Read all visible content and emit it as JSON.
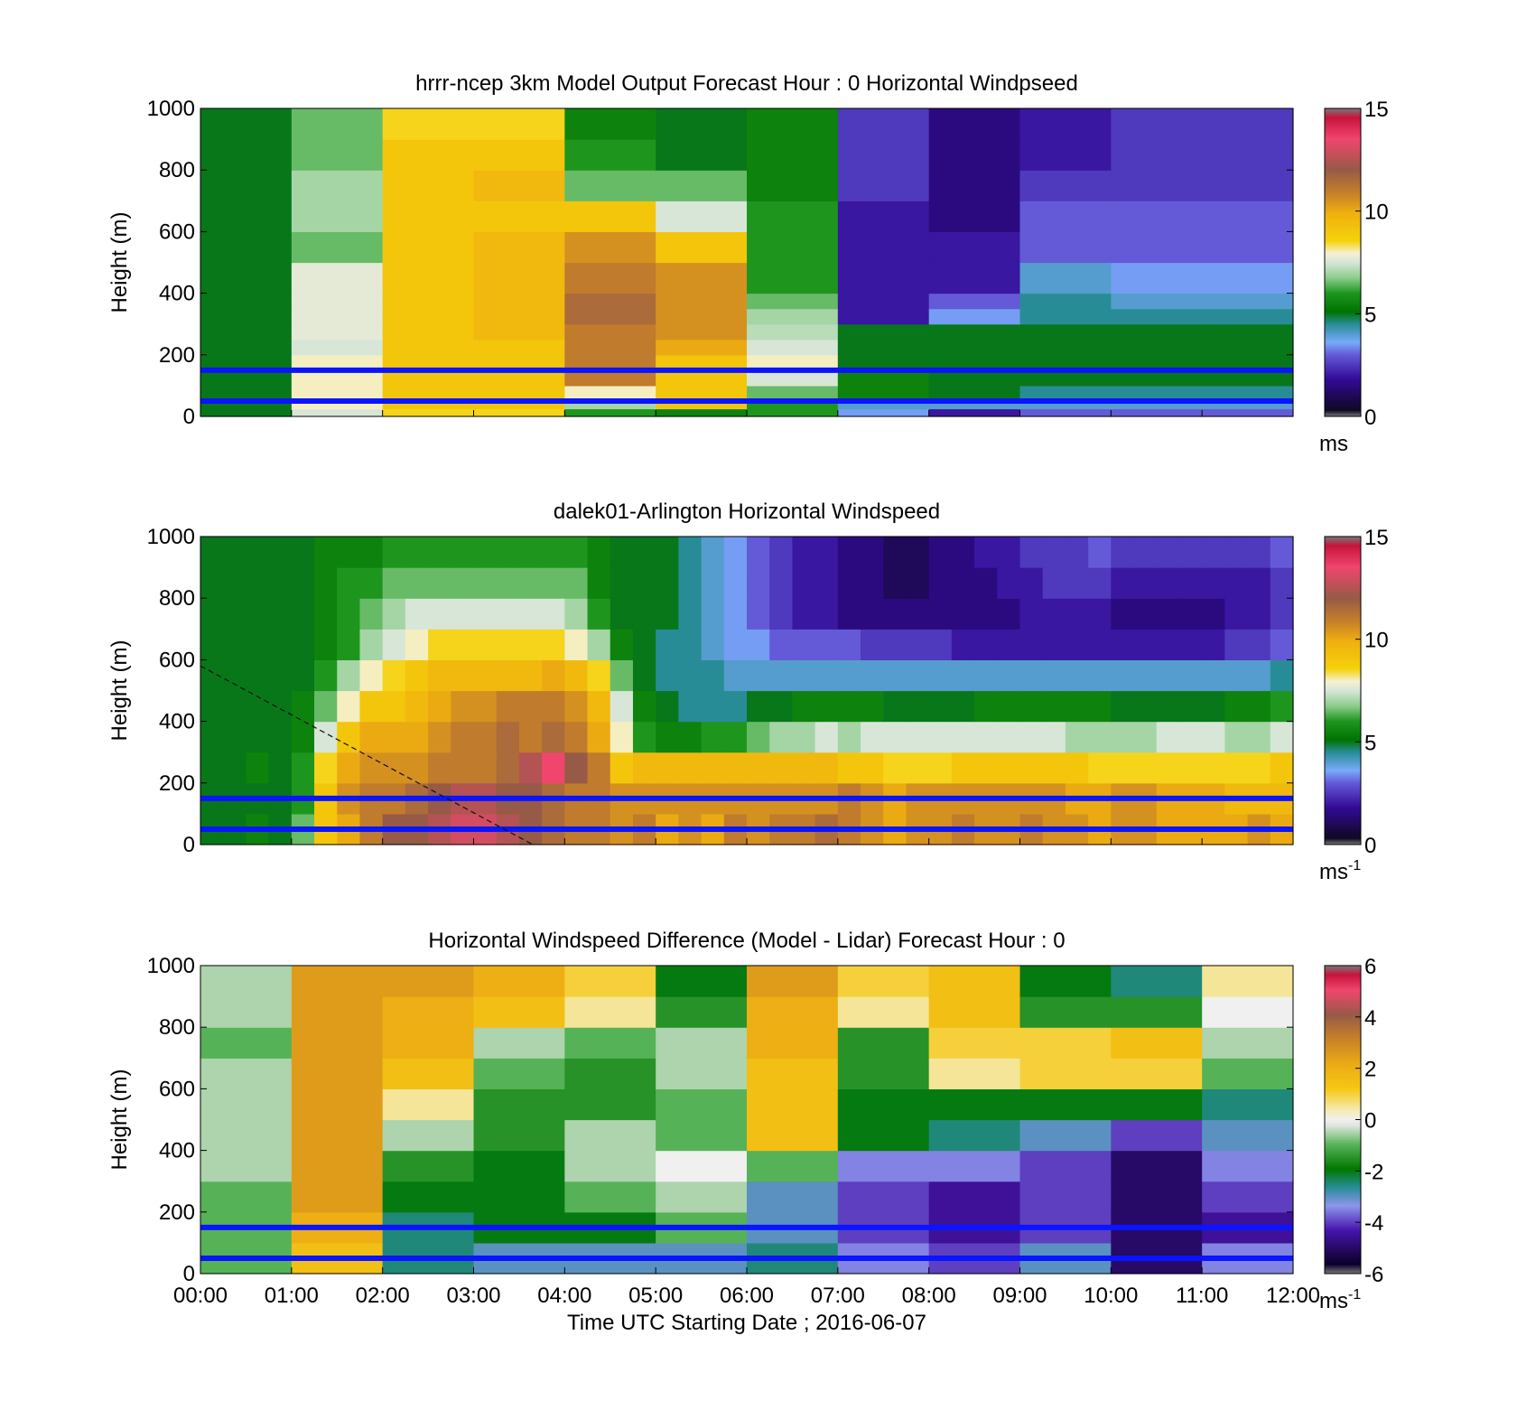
{
  "chart_data": [
    {
      "type": "heatmap",
      "title": "hrrr-ncep 3km Model Output   Forecast Hour : 0 Horizontal Windpseed",
      "ylabel": "Height (m)",
      "ylim": [
        0,
        1000
      ],
      "yticks": [
        "0",
        "200",
        "400",
        "600",
        "800",
        "1000"
      ],
      "xlim_hours": [
        0,
        12
      ],
      "colorbar": {
        "min": 0,
        "max": 15,
        "ticks": [
          "0",
          "5",
          "10",
          "15"
        ],
        "unit_label": "ms"
      },
      "reference_lines_m": [
        150,
        50
      ],
      "time_resolution_hours": 1,
      "height_levels_m": [
        0,
        25,
        50,
        100,
        150,
        200,
        250,
        300,
        350,
        400,
        500,
        600,
        700,
        800,
        900,
        1000
      ],
      "values": [
        [
          5,
          7.5,
          8.5,
          8.5,
          6,
          5.5,
          6,
          3.5,
          2,
          3,
          3,
          3
        ],
        [
          5,
          8,
          9,
          9,
          7,
          9,
          6,
          4,
          4,
          4,
          4,
          4
        ],
        [
          5,
          8,
          9,
          9,
          8,
          9,
          6.5,
          5.5,
          5,
          4.5,
          4.5,
          4.5
        ],
        [
          5,
          8,
          9,
          9,
          11,
          9,
          7.5,
          5.5,
          5,
          5,
          5,
          5
        ],
        [
          5,
          8,
          9,
          9,
          11,
          9,
          8,
          5,
          5,
          5,
          5,
          5
        ],
        [
          5,
          7.5,
          9,
          9,
          11,
          10,
          7.5,
          5,
          5,
          5,
          5,
          5
        ],
        [
          5,
          7.7,
          9,
          9.5,
          11,
          10.5,
          7.2,
          5,
          5,
          5,
          5,
          5
        ],
        [
          5,
          7.7,
          9,
          9.5,
          11.5,
          10.5,
          7,
          2,
          3.5,
          4.5,
          4.5,
          4.5
        ],
        [
          5,
          7.7,
          9,
          9.5,
          11.5,
          10.5,
          6.5,
          2,
          3,
          4.5,
          4,
          4
        ],
        [
          5,
          7.7,
          9,
          9.5,
          11,
          10.5,
          6,
          2,
          2,
          4,
          3.5,
          3.5
        ],
        [
          5,
          6.5,
          9,
          9.5,
          10.5,
          9,
          6,
          2,
          2,
          3,
          3,
          3
        ],
        [
          5,
          7,
          9,
          9,
          9,
          7.5,
          6,
          2,
          1.5,
          3,
          3,
          3
        ],
        [
          5,
          7,
          9,
          9.5,
          6.5,
          6.5,
          5.5,
          2.5,
          1.5,
          2.5,
          2.5,
          2.5
        ],
        [
          5,
          6.5,
          9,
          9,
          6,
          5,
          5.5,
          2.5,
          1.5,
          2,
          2.5,
          2.5
        ],
        [
          5,
          6.5,
          8.5,
          8.5,
          5.5,
          5,
          5.5,
          2.5,
          1.5,
          2,
          2.5,
          2.5
        ]
      ]
    },
    {
      "type": "heatmap",
      "title": "dalek01-Arlington  Horizontal Windspeed",
      "ylabel": "Height (m)",
      "ylim": [
        0,
        1000
      ],
      "yticks": [
        "0",
        "200",
        "400",
        "600",
        "800",
        "1000"
      ],
      "xlim_hours": [
        0,
        12
      ],
      "colorbar": {
        "min": 0,
        "max": 15,
        "ticks": [
          "0",
          "5",
          "10",
          "15"
        ],
        "unit_label": "ms",
        "unit_exponent": "-1"
      },
      "reference_lines_m": [
        150,
        50
      ],
      "annotation_dashed_line": {
        "from": [
          0,
          580
        ],
        "to": [
          3.65,
          0
        ]
      },
      "time_resolution_hours": 0.25,
      "height_levels_m": [
        0,
        100,
        200,
        300,
        400,
        500,
        600,
        700,
        800,
        900,
        1000
      ],
      "values": [
        [
          5,
          5,
          5.5,
          5,
          6.5,
          9,
          10,
          11,
          12,
          12,
          12.5,
          13,
          13,
          12.5,
          12,
          11.5,
          11,
          11,
          10.5,
          11,
          10,
          10.5,
          10,
          11,
          10.5,
          11,
          11,
          11.5,
          11,
          10.5,
          10,
          10.5,
          10.5,
          11,
          10.5,
          10.5,
          11,
          10.5,
          10.5,
          10,
          10.5,
          10.5,
          10,
          10,
          10,
          10,
          10.5,
          10,
          10.5
        ],
        [
          5,
          5,
          5,
          5,
          6,
          9,
          10.5,
          11,
          11,
          11.5,
          12,
          12.5,
          12.5,
          12,
          12,
          11.5,
          11,
          11,
          10.5,
          10.5,
          10.5,
          10.5,
          10.5,
          10.5,
          10.5,
          10.5,
          10.5,
          10.5,
          11,
          10.5,
          10,
          10.5,
          10.5,
          10.5,
          10.5,
          10.5,
          10.5,
          10.5,
          10,
          10,
          10.5,
          10.5,
          10,
          10,
          10,
          9.5,
          9.5,
          9.5,
          9.5
        ],
        [
          5,
          5,
          5.5,
          5,
          6,
          8.5,
          10,
          10.5,
          10.5,
          10.5,
          11,
          11,
          11,
          11.5,
          12.5,
          13.5,
          12,
          11,
          9,
          9.5,
          9.5,
          9.5,
          9.5,
          9.5,
          9.5,
          9.5,
          9.5,
          9.5,
          9,
          9,
          8.5,
          8.5,
          8.5,
          9,
          9,
          9,
          9,
          9,
          9,
          8.5,
          8.5,
          8.5,
          8.5,
          8.5,
          8.5,
          8.5,
          8.5,
          9,
          9
        ],
        [
          5,
          5,
          5,
          5,
          5.5,
          7.5,
          9,
          10,
          10,
          10,
          10.5,
          11,
          11,
          11.5,
          11,
          11.5,
          11,
          10,
          8,
          6,
          5.5,
          5.5,
          6,
          6,
          6.5,
          7,
          7,
          7.5,
          7,
          7.5,
          7.5,
          7.5,
          7.5,
          7.5,
          7.5,
          7.5,
          7.5,
          7.5,
          7,
          7,
          7,
          7,
          7.5,
          7.5,
          7.5,
          7,
          7,
          7.5,
          7.5
        ],
        [
          5,
          5,
          5,
          5,
          5.5,
          6.5,
          8,
          9,
          9,
          9.5,
          10,
          10.5,
          10.5,
          11,
          11,
          11,
          10.5,
          9.5,
          7.5,
          5.5,
          5,
          4.5,
          4.5,
          4.5,
          5,
          5,
          5.5,
          5.5,
          5.5,
          5.5,
          5,
          5,
          5,
          5,
          5.5,
          5.5,
          5.5,
          5.5,
          5.5,
          5.5,
          5,
          5,
          5,
          5,
          5,
          5.5,
          5.5,
          6,
          6
        ],
        [
          5,
          5,
          5,
          5,
          5,
          6,
          7,
          8,
          8.5,
          9,
          9.5,
          9.5,
          9.5,
          9.5,
          9.5,
          10,
          9.5,
          8.5,
          6.5,
          5,
          4.5,
          4.5,
          4.5,
          4,
          4,
          4,
          4,
          4,
          4,
          4,
          4,
          4,
          4,
          4,
          4,
          4,
          4,
          4,
          4,
          4,
          4,
          4,
          4,
          4,
          4,
          4,
          4,
          4.5,
          4.5
        ],
        [
          5,
          5,
          5,
          5,
          5,
          5.5,
          6,
          7,
          7.5,
          8,
          8.5,
          8.5,
          8.5,
          8.5,
          8.5,
          8.5,
          8,
          7,
          5.5,
          5,
          4.5,
          4.5,
          4,
          3.5,
          3.5,
          3,
          3,
          3,
          3,
          2.5,
          2.5,
          2.5,
          2.5,
          2,
          2,
          2,
          2,
          2,
          2,
          2,
          2,
          2,
          2,
          2,
          2,
          2.5,
          2.5,
          3,
          3
        ],
        [
          5,
          5,
          5,
          5,
          5,
          5.5,
          6,
          6.5,
          7,
          7.5,
          7.5,
          7.5,
          7.5,
          7.5,
          7.5,
          7.5,
          7,
          6,
          5,
          5,
          5,
          4.5,
          4,
          3.5,
          3,
          2.5,
          2,
          2,
          1.5,
          1.5,
          1.5,
          1.5,
          1.5,
          1.5,
          1.5,
          1.5,
          2,
          2,
          2,
          2,
          1.5,
          1.5,
          1.5,
          1.5,
          1.5,
          2,
          2,
          2.5,
          2.5
        ],
        [
          5,
          5,
          5,
          5,
          5,
          5.5,
          6,
          6,
          6.5,
          6.5,
          6.5,
          6.5,
          6.5,
          6.5,
          6.5,
          6.5,
          6.5,
          5.5,
          5,
          5,
          5,
          4.5,
          4,
          3.5,
          3,
          2.5,
          2,
          2,
          1.5,
          1.5,
          1,
          1,
          1.5,
          1.5,
          1.5,
          2,
          2,
          2.5,
          2.5,
          2.5,
          2,
          2,
          2,
          2,
          2,
          2,
          2,
          2.5,
          2.5
        ],
        [
          5,
          5,
          5,
          5,
          5,
          5.5,
          5.5,
          5.5,
          6,
          6,
          6,
          6,
          6,
          6,
          6,
          6,
          6,
          5.5,
          5,
          5,
          5,
          4.5,
          4,
          3.5,
          3,
          2.5,
          2,
          2,
          1.5,
          1.5,
          1,
          1,
          1.5,
          1.5,
          2,
          2,
          2.5,
          2.5,
          2.5,
          3,
          2.5,
          2.5,
          2.5,
          2.5,
          2.5,
          2.5,
          2.5,
          3,
          3
        ],
        [
          5,
          5,
          5,
          5,
          5,
          5.5,
          5.5,
          5.5,
          5.5,
          5.5,
          5.5,
          5.5,
          5.5,
          5.5,
          5.5,
          5.5,
          5.5,
          5.5,
          5,
          5,
          5,
          4.5,
          4,
          3.5,
          3,
          2.5,
          2,
          2,
          1.5,
          1.5,
          1,
          1,
          1.5,
          1.5,
          2,
          2,
          2.5,
          2.5,
          3,
          3,
          3,
          3,
          3,
          3,
          3,
          3,
          3,
          3,
          3
        ]
      ]
    },
    {
      "type": "heatmap",
      "title": "Horizontal Windspeed Difference (Model - Lidar) Forecast Hour : 0",
      "xlabel": "Time UTC  Starting Date ; 2016-06-07",
      "ylabel": "Height (m)",
      "ylim": [
        0,
        1000
      ],
      "yticks": [
        "0",
        "200",
        "400",
        "600",
        "800",
        "1000"
      ],
      "xlim_hours": [
        0,
        12
      ],
      "xticks": [
        "00:00",
        "01:00",
        "02:00",
        "03:00",
        "04:00",
        "05:00",
        "06:00",
        "07:00",
        "08:00",
        "09:00",
        "10:00",
        "11:00",
        "12:00"
      ],
      "colorbar": {
        "min": -6,
        "max": 6,
        "ticks": [
          "-6",
          "-4",
          "-2",
          "0",
          "2",
          "4",
          "6"
        ],
        "unit_label": "ms",
        "unit_exponent": "-1"
      },
      "reference_lines_m": [
        150,
        50
      ],
      "time_resolution_hours": 1,
      "height_levels_m": [
        0,
        100,
        200,
        300,
        400,
        500,
        600,
        700,
        800,
        900,
        1000
      ],
      "values": [
        [
          -1,
          1.5,
          -2.5,
          -3,
          -3,
          -3,
          -2.5,
          -3.5,
          -4,
          -3,
          -5,
          -3.5
        ],
        [
          -1,
          2,
          -2.5,
          -2,
          -2,
          -1,
          -3,
          -4,
          -4.5,
          -4,
          -5,
          -4.5
        ],
        [
          -1,
          2.5,
          -2,
          -2,
          -1,
          -0.5,
          -3,
          -4,
          -4.5,
          -4,
          -5,
          -4
        ],
        [
          -0.5,
          2.5,
          -1.5,
          -2,
          -0.5,
          0,
          -1,
          -3.5,
          -3.5,
          -4,
          -5,
          -3.5
        ],
        [
          -0.5,
          2.5,
          -0.5,
          -1.5,
          -0.5,
          -1,
          1.5,
          -2,
          -2.5,
          -3,
          -4,
          -3
        ],
        [
          -0.5,
          2.5,
          0.5,
          -1.5,
          -1.5,
          -1,
          1.5,
          -2,
          -2,
          -2,
          -2,
          -2.5
        ],
        [
          -0.5,
          2.5,
          1.5,
          -1,
          -1.5,
          -0.5,
          1.5,
          -1.5,
          0.5,
          1,
          1,
          -1
        ],
        [
          -1,
          2.5,
          2,
          -0.5,
          -1,
          -0.5,
          2,
          -1.5,
          1,
          1,
          1.5,
          -0.5
        ],
        [
          -0.5,
          2.5,
          2,
          1.5,
          0.5,
          -1.5,
          2,
          0.5,
          1.5,
          -1.5,
          -1.5,
          0
        ],
        [
          -0.5,
          2.5,
          2.5,
          2,
          1,
          -2,
          2.5,
          1,
          1.5,
          -2,
          -2.5,
          0.5
        ],
        [
          0.5,
          3,
          3,
          3,
          1.5,
          -2.5,
          2.5,
          1,
          1.5,
          -2.5,
          -2.5,
          0.5
        ]
      ]
    }
  ]
}
